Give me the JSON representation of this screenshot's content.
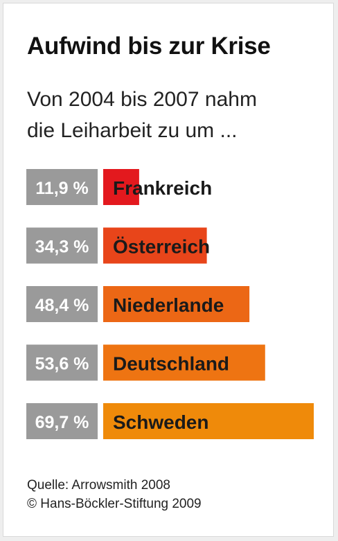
{
  "chart_data": {
    "type": "bar",
    "orientation": "horizontal",
    "title": "Aufwind bis zur Krise",
    "subtitle_lines": [
      "Von 2004 bis 2007 nahm",
      "die Leiharbeit zu um ..."
    ],
    "categories": [
      "Frankreich",
      "Österreich",
      "Niederlande",
      "Deutschland",
      "Schweden"
    ],
    "values": [
      11.9,
      34.3,
      48.4,
      53.6,
      69.7
    ],
    "value_labels": [
      "11,9 %",
      "34,3 %",
      "48,4 %",
      "53,6 %",
      "69,7 %"
    ],
    "unit": "%",
    "bar_colors": [
      "#e3191e",
      "#e8451a",
      "#ec6715",
      "#ee7412",
      "#ef8a0a"
    ],
    "value_box_color": "#9a9a9a"
  },
  "source": {
    "line1": "Quelle: Arrowsmith 2008",
    "line2": "© Hans-Böckler-Stiftung 2009"
  }
}
